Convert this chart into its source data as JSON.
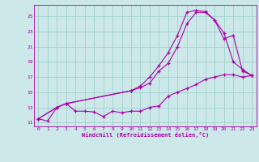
{
  "bg_color": "#cce8e8",
  "line_color": "#aa00aa",
  "grid_color": "#99cccc",
  "xlabel": "Windchill (Refroidissement éolien,°C)",
  "tick_color": "#aa00aa",
  "ylim": [
    10.5,
    26.5
  ],
  "xlim": [
    -0.5,
    23.5
  ],
  "yticks": [
    11,
    13,
    15,
    17,
    19,
    21,
    23,
    25
  ],
  "xticks": [
    0,
    1,
    2,
    3,
    4,
    5,
    6,
    7,
    8,
    9,
    10,
    11,
    12,
    13,
    14,
    15,
    16,
    17,
    18,
    19,
    20,
    21,
    22,
    23
  ],
  "line1_x": [
    0,
    1,
    2,
    3,
    4,
    5,
    6,
    7,
    8,
    9,
    10,
    11,
    12,
    13,
    14,
    15,
    16,
    17,
    18,
    19,
    20,
    21,
    22,
    23
  ],
  "line1_y": [
    11.5,
    11.2,
    13.0,
    13.5,
    12.5,
    12.5,
    12.4,
    11.8,
    12.5,
    12.3,
    12.5,
    12.5,
    13.0,
    13.2,
    14.5,
    15.0,
    15.5,
    16.0,
    16.7,
    17.0,
    17.3,
    17.3,
    17.0,
    17.2
  ],
  "line2_x": [
    0,
    2,
    3,
    10,
    11,
    12,
    13,
    14,
    15,
    16,
    17,
    18,
    19,
    20,
    21,
    22,
    23
  ],
  "line2_y": [
    11.5,
    13.0,
    13.5,
    15.2,
    15.6,
    16.2,
    17.8,
    18.8,
    21.0,
    24.0,
    25.5,
    25.5,
    24.5,
    22.8,
    19.0,
    18.0,
    17.2
  ],
  "line3_x": [
    0,
    2,
    3,
    10,
    11,
    12,
    13,
    14,
    15,
    16,
    17,
    18,
    19,
    20,
    21,
    22,
    23
  ],
  "line3_y": [
    11.5,
    13.0,
    13.5,
    15.2,
    15.8,
    17.0,
    18.5,
    20.2,
    22.5,
    25.5,
    25.8,
    25.6,
    24.5,
    22.0,
    22.5,
    17.8,
    17.2
  ]
}
